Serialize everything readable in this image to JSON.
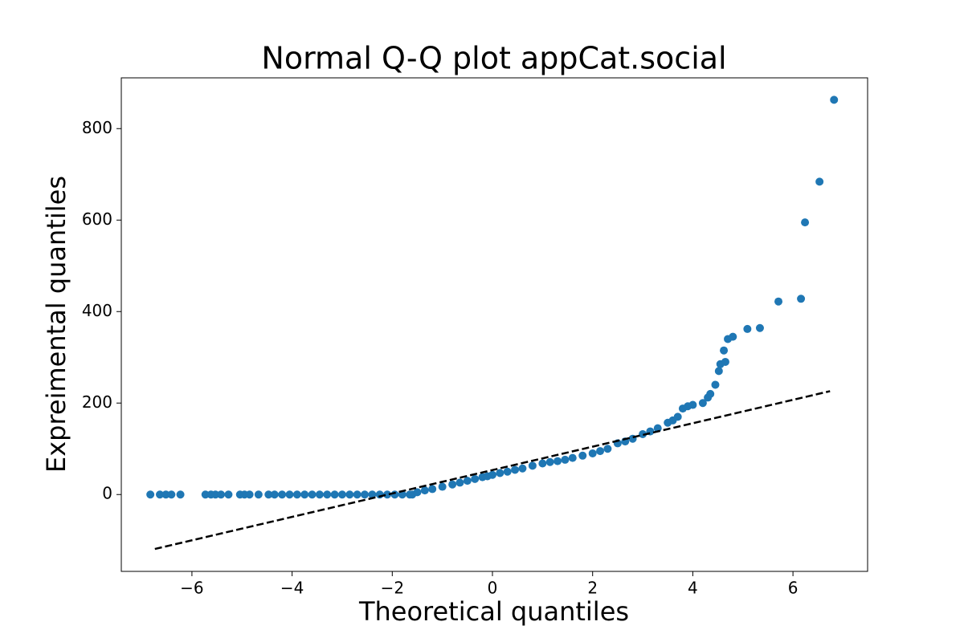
{
  "chart_data": {
    "type": "scatter",
    "title": "Normal Q-Q plot appCat.social",
    "x_label": "Theoretical quantiles",
    "y_label": "Expreimental quantiles",
    "xlim": [
      -7.41,
      7.49
    ],
    "ylim": [
      -168,
      911
    ],
    "xticks": [
      {
        "value": -6,
        "label": "−6"
      },
      {
        "value": -4,
        "label": "−4"
      },
      {
        "value": -2,
        "label": "−2"
      },
      0,
      2,
      4,
      6
    ],
    "yticks": [
      0,
      200,
      400,
      600,
      800
    ],
    "series": [
      {
        "color": "#1f77b4",
        "x": [
          -6.83,
          -6.64,
          -6.52,
          -6.41,
          -6.23,
          -5.73,
          -5.62,
          -5.53,
          -5.42,
          -5.27,
          -5.04,
          -4.95,
          -4.85,
          -4.67,
          -4.47,
          -4.35,
          -4.2,
          -4.05,
          -3.9,
          -3.75,
          -3.6,
          -3.45,
          -3.3,
          -3.15,
          -3.0,
          -2.85,
          -2.7,
          -2.55,
          -2.4,
          -2.25,
          -2.1,
          -1.95,
          -1.8,
          -1.65,
          -1.6,
          -1.5,
          -1.35,
          -1.2,
          -1.0,
          -0.8,
          -0.65,
          -0.5,
          -0.35,
          -0.2,
          -0.1,
          0,
          0.15,
          0.3,
          0.45,
          0.6,
          0.8,
          1.0,
          1.15,
          1.3,
          1.45,
          1.6,
          1.8,
          2.0,
          2.15,
          2.3,
          2.5,
          2.65,
          2.8,
          3.0,
          3.15,
          3.3,
          3.5,
          3.6,
          3.7,
          3.8,
          3.9,
          4.0,
          4.2,
          4.3,
          4.35,
          4.45,
          4.52,
          4.55,
          4.62,
          4.65,
          4.7,
          4.8,
          5.09,
          5.34,
          5.71,
          6.16,
          6.24,
          6.53,
          6.82
        ],
        "values": [
          0,
          0,
          0,
          0,
          0,
          0,
          0,
          0,
          0,
          0,
          0,
          0,
          0,
          0,
          0,
          0,
          0,
          0,
          0,
          0,
          0,
          0,
          0,
          0,
          0,
          0,
          0,
          0,
          0,
          0,
          0,
          0,
          0,
          0,
          0,
          5,
          9,
          12,
          17,
          22,
          26,
          30,
          34,
          38,
          40,
          43,
          47,
          50,
          54,
          57,
          63,
          68,
          71,
          73,
          76,
          80,
          85,
          90,
          95,
          100,
          112,
          116,
          122,
          132,
          138,
          145,
          157,
          162,
          170,
          188,
          193,
          196,
          200,
          212,
          220,
          240,
          270,
          285,
          315,
          290,
          340,
          345,
          362,
          364,
          422,
          428,
          595,
          684,
          863
        ]
      },
      {
        "color": "#000000",
        "mode": "line",
        "dash": "dashed",
        "x": [
          -6.74,
          6.74
        ],
        "values": [
          -119,
          226
        ]
      }
    ]
  }
}
